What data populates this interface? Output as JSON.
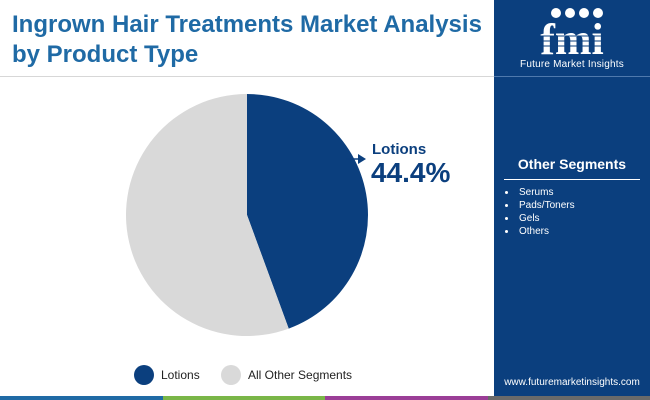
{
  "title": "Ingrown Hair Treatments Market Analysis by Product Type",
  "brand": {
    "logo_text": "fmi",
    "name": "Future Market Insights",
    "website": "www.futuremarketinsights.com"
  },
  "sidebar": {
    "heading": "Other Segments",
    "items": [
      "Serums",
      "Pads/Toners",
      "Gels",
      "Others"
    ]
  },
  "callout": {
    "label": "Lotions",
    "value": "44.4%"
  },
  "legend": {
    "items": [
      {
        "label": "Lotions",
        "color": "#0b3f7e"
      },
      {
        "label": "All Other Segments",
        "color": "#d9d9d9"
      }
    ]
  },
  "chart_data": {
    "type": "pie",
    "title": "Ingrown Hair Treatments Market Analysis by Product Type",
    "slices": [
      {
        "name": "Lotions",
        "value": 44.4,
        "color": "#0b3f7e"
      },
      {
        "name": "All Other Segments",
        "value": 55.6,
        "color": "#d9d9d9"
      }
    ],
    "start_angle_deg": 0,
    "direction": "clockwise",
    "legend_position": "bottom"
  },
  "colors": {
    "title": "#1f6aa5",
    "sidebar_bg": "#0b3f7e",
    "bottom_bar": [
      "#1f6aa5",
      "#7ab648",
      "#9b3e97",
      "#6a6a6a"
    ]
  }
}
